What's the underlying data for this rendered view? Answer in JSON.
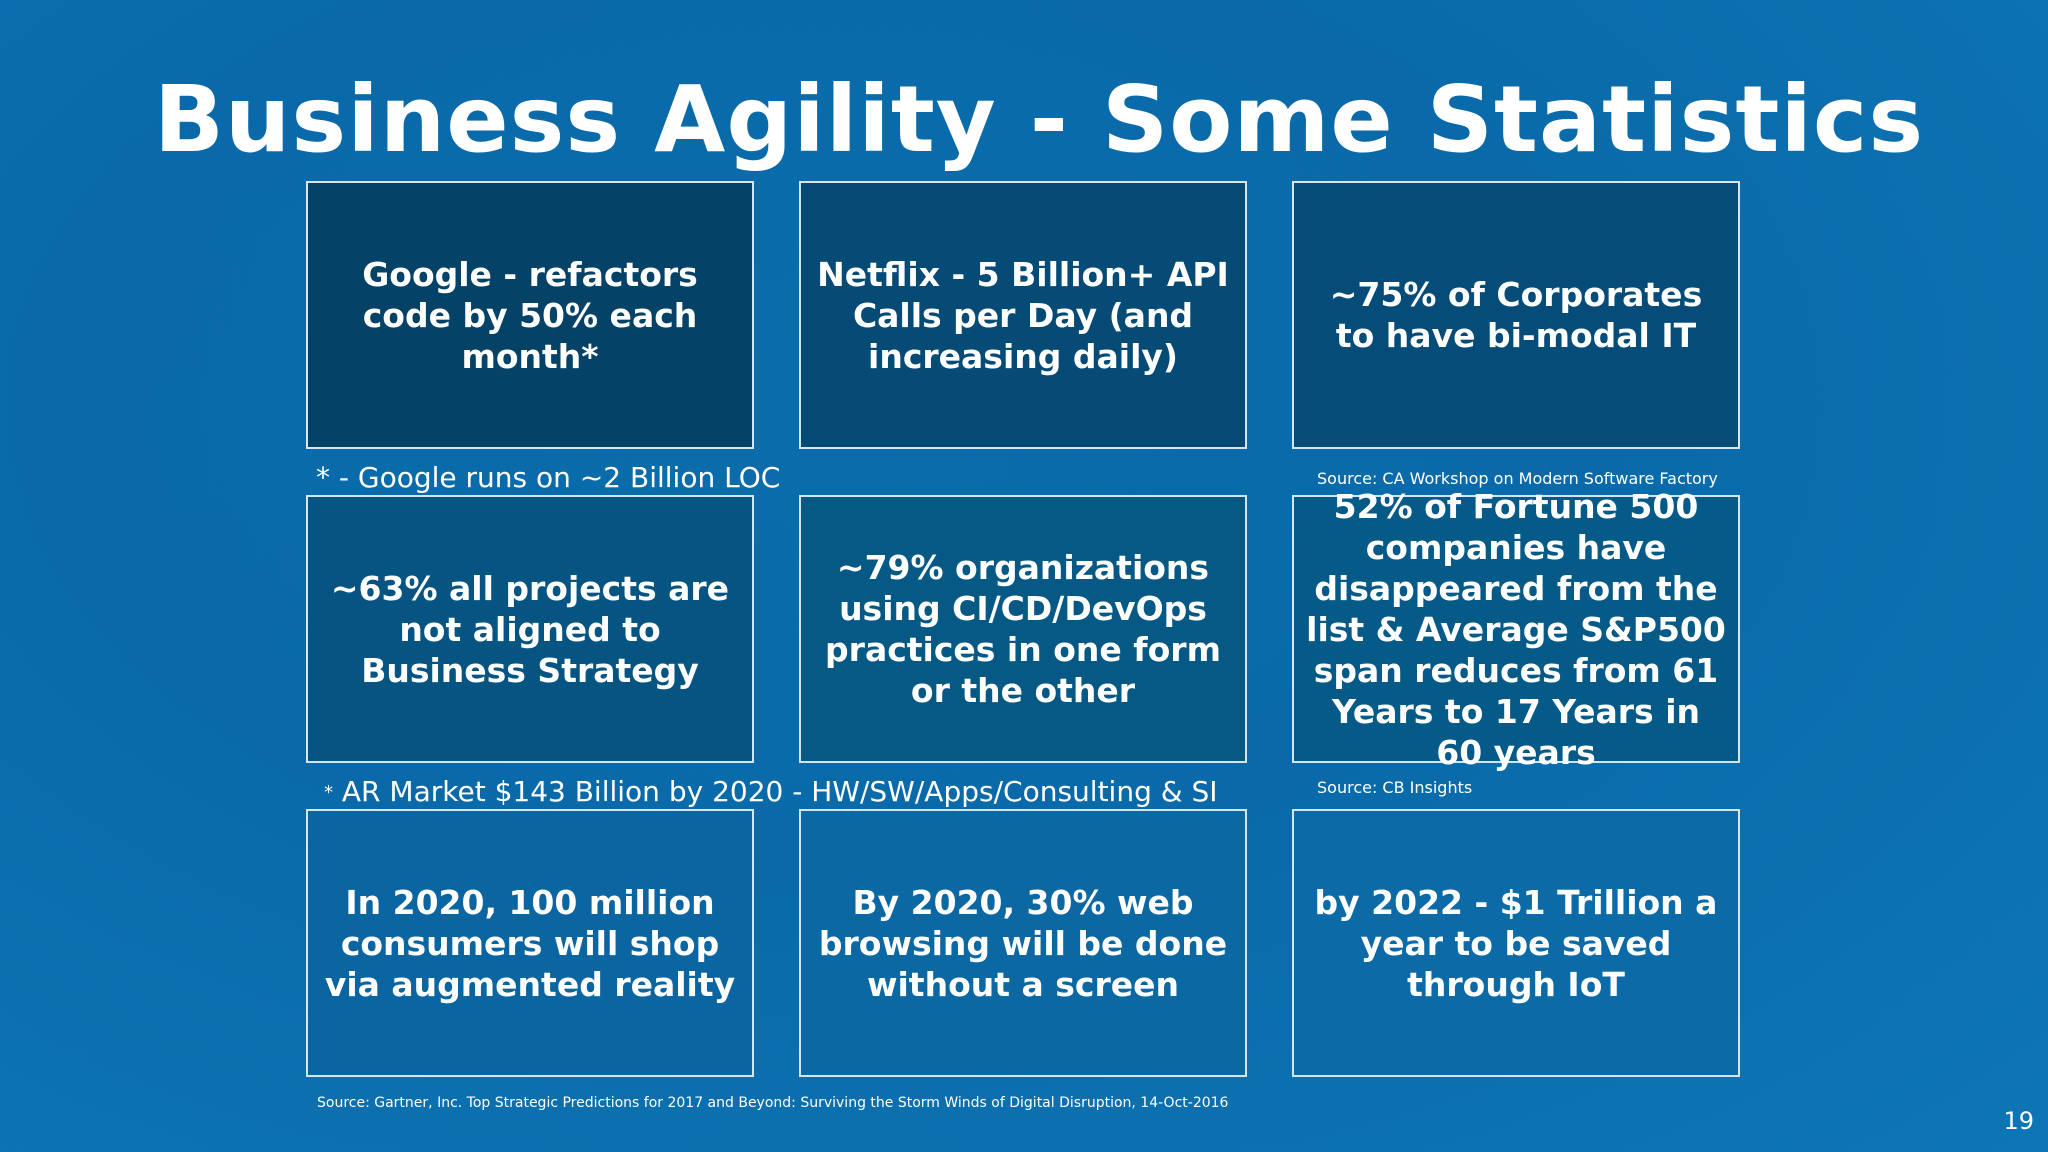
{
  "slide": {
    "title": "Business Agility - Some Statistics",
    "page_number": "19"
  },
  "cards": {
    "google": "Google - refactors code by 50% each month*",
    "netflix": "Netflix - 5 Billion+ API Calls per Day (and increasing daily)",
    "bimodal": "~75% of Corporates to have bi-modal IT",
    "projects": "~63% all projects are not aligned to Business Strategy",
    "devops": "~79% organizations using CI/CD/DevOps practices in one form or the other",
    "fortune": "52% of Fortune 500 companies have disappeared from the list & Average S&P500 span reduces from 61 Years to 17 Years in 60 years",
    "ar": "In 2020, 100 million consumers will shop via augmented reality",
    "web": "By 2020, 30% web browsing will be done without a screen",
    "iot": "by 2022 - $1 Trillion a year to be saved through IoT"
  },
  "notes": {
    "google_loc": "* - Google runs on ~2 Billion LOC",
    "source_ca": "Source: CA Workshop on Modern Software Factory",
    "ar_star": "*",
    "ar_market": "AR Market  $143 Billion by 2020  - HW/SW/Apps/Consulting & SI",
    "source_cb": "Source: CB Insights",
    "source_gartner": "Source: Gartner, Inc. Top Strategic Predictions for 2017 and Beyond: Surviving the Storm Winds of Digital Disruption, 14-Oct-2016"
  }
}
